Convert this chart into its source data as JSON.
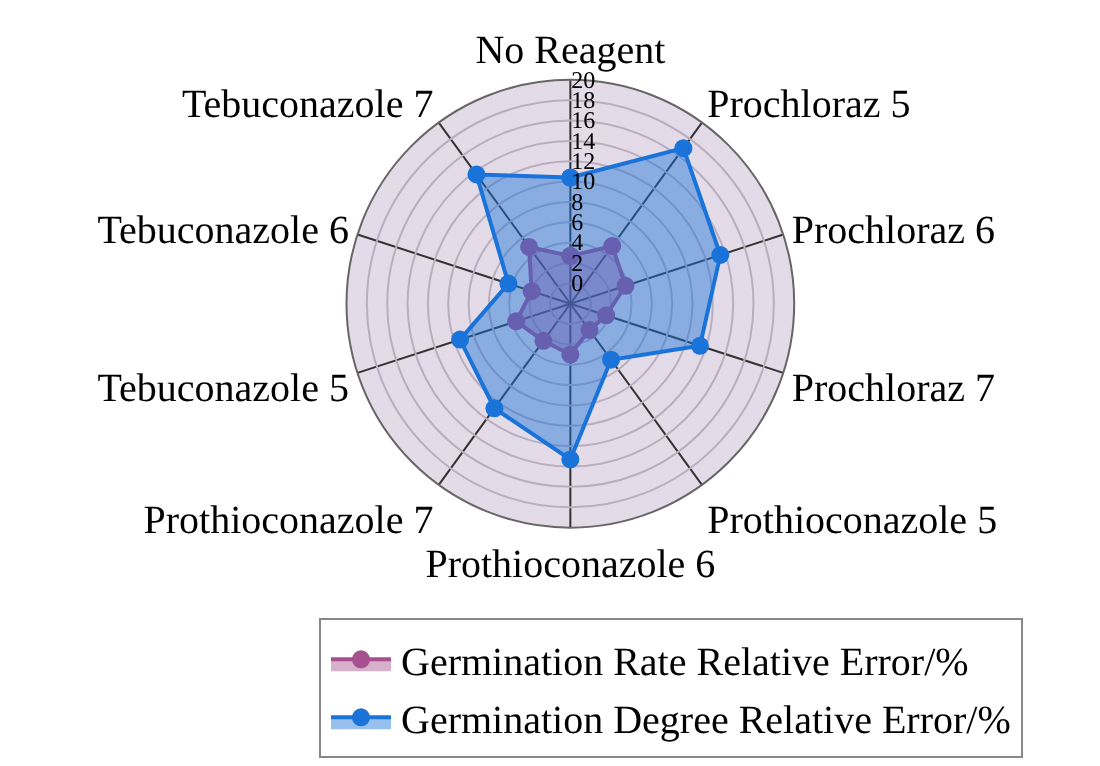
{
  "chart_data": {
    "type": "radar",
    "categories": [
      "No Reagent",
      "Prochloraz 5",
      "Prochloraz 6",
      "Prochloraz 7",
      "Prothioconazole 5",
      "Prothioconazole 6",
      "Prothioconazole 7",
      "Tebuconazole 5",
      "Tebuconazole 6",
      "Tebuconazole 7"
    ],
    "series": [
      {
        "name": "Germination Rate Relative Error/%",
        "color": "#a6508f",
        "values": [
          2.7,
          5.0,
          3.7,
          1.7,
          1.2,
          3.0,
          2.5,
          3.6,
          2.0,
          4.9
        ]
      },
      {
        "name": "Germination Degree Relative Error/%",
        "color": "#1a73d9",
        "values": [
          10.4,
          16.9,
          13.5,
          11.4,
          4.8,
          13.3,
          10.7,
          9.4,
          4.4,
          13.7
        ]
      }
    ],
    "ylim": [
      -2,
      20
    ],
    "yticks": [
      0,
      2,
      4,
      6,
      8,
      10,
      12,
      14,
      16,
      18,
      20
    ],
    "grid": true,
    "legend": "bottom",
    "marker": "circle"
  }
}
